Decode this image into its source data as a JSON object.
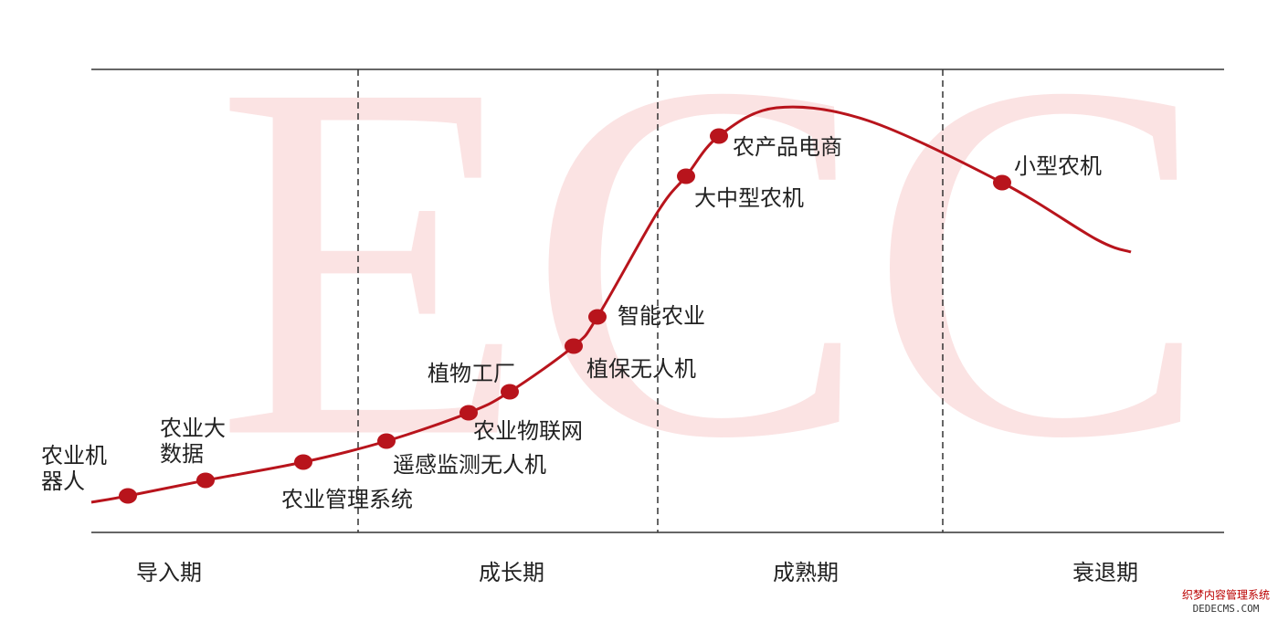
{
  "watermark": "ECC",
  "stages": [
    "导入期",
    "成长期",
    "成熟期",
    "衰退期"
  ],
  "nodes": [
    {
      "label": [
        "农业机",
        "器人"
      ]
    },
    {
      "label": [
        "农业大",
        "数据"
      ]
    },
    {
      "label": [
        "农业管理系统"
      ]
    },
    {
      "label": [
        "遥感监测无人机"
      ]
    },
    {
      "label": [
        "农业物联网"
      ]
    },
    {
      "label": [
        "植物工厂"
      ]
    },
    {
      "label": [
        "植保无人机"
      ]
    },
    {
      "label": [
        "智能农业"
      ]
    },
    {
      "label": [
        "大中型农机"
      ]
    },
    {
      "label": [
        "农产品电商"
      ]
    },
    {
      "label": [
        "小型农机"
      ]
    }
  ],
  "site_badge": [
    "织梦内容管理系统",
    "DEDECMS.COM"
  ]
}
